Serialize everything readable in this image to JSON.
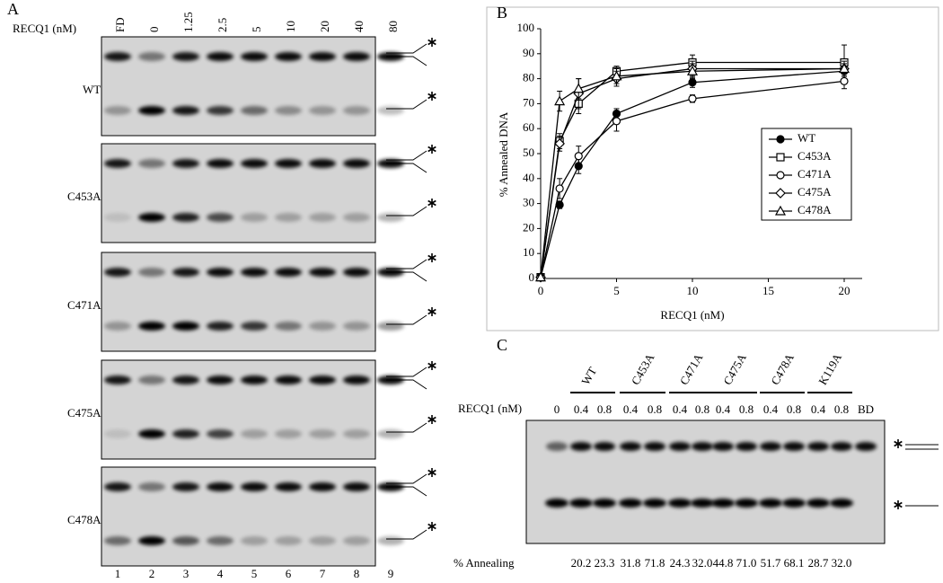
{
  "panel_a": {
    "label": "A",
    "axis_label": "RECQ1 (nM)",
    "lanes": [
      "FD",
      "0",
      "1.25",
      "2.5",
      "5",
      "10",
      "20",
      "40",
      "80"
    ],
    "gels": [
      "WT",
      "C453A",
      "C471A",
      "C475A",
      "C478A"
    ],
    "lane_numbers": [
      "1",
      "2",
      "3",
      "4",
      "5",
      "6",
      "7",
      "8",
      "9"
    ]
  },
  "chart_data": {
    "type": "line",
    "panel_label": "B",
    "xlabel": "RECQ1 (nM)",
    "ylabel": "% Annealed DNA",
    "x": [
      0,
      1.25,
      2.5,
      5,
      10,
      20
    ],
    "xlim": [
      0,
      20
    ],
    "ylim": [
      0,
      100
    ],
    "xticks": [
      0,
      5,
      10,
      15,
      20
    ],
    "yticks": [
      0,
      10,
      20,
      30,
      40,
      50,
      60,
      70,
      80,
      90,
      100
    ],
    "legend": "right",
    "series": [
      {
        "name": "WT",
        "color": "#000000",
        "marker": "filled-circle",
        "values": [
          0.5,
          29.5,
          45,
          66,
          78.5,
          83
        ],
        "errors": [
          0,
          1.5,
          3,
          2,
          2,
          2
        ]
      },
      {
        "name": "C453A",
        "color": "#000000",
        "marker": "square",
        "values": [
          0.5,
          55,
          70,
          83,
          86.5,
          86.5
        ],
        "errors": [
          0,
          3,
          4,
          2,
          3,
          7
        ]
      },
      {
        "name": "C471A",
        "color": "#000000",
        "marker": "circle",
        "values": [
          0.5,
          36,
          49,
          63,
          72,
          79
        ],
        "errors": [
          0,
          4,
          4,
          4,
          1.5,
          3
        ]
      },
      {
        "name": "C475A",
        "color": "#000000",
        "marker": "diamond",
        "values": [
          0.5,
          54,
          74,
          80,
          84,
          84
        ],
        "errors": [
          0,
          3,
          6,
          3,
          3,
          3
        ]
      },
      {
        "name": "C478A",
        "color": "#000000",
        "marker": "triangle",
        "values": [
          0.5,
          71,
          76,
          81,
          83,
          84
        ],
        "errors": [
          0,
          4,
          4,
          3,
          3,
          2
        ]
      }
    ]
  },
  "panel_c": {
    "label": "C",
    "axis_label": "RECQ1 (nM)",
    "groups": [
      "WT",
      "C453A",
      "C471A",
      "C475A",
      "C478A",
      "K119A"
    ],
    "lanes": [
      "0",
      "0.4",
      "0.8",
      "0.4",
      "0.8",
      "0.4",
      "0.8",
      "0.4",
      "0.8",
      "0.4",
      "0.8",
      "0.4",
      "0.8",
      "BD"
    ],
    "row_label": "% Annealing",
    "annealing": [
      "20.2",
      "23.3",
      "31.8",
      "71.8",
      "24.3",
      "32.0",
      "44.8",
      "71.0",
      "51.7",
      "68.1",
      "28.7",
      "32.0"
    ]
  }
}
